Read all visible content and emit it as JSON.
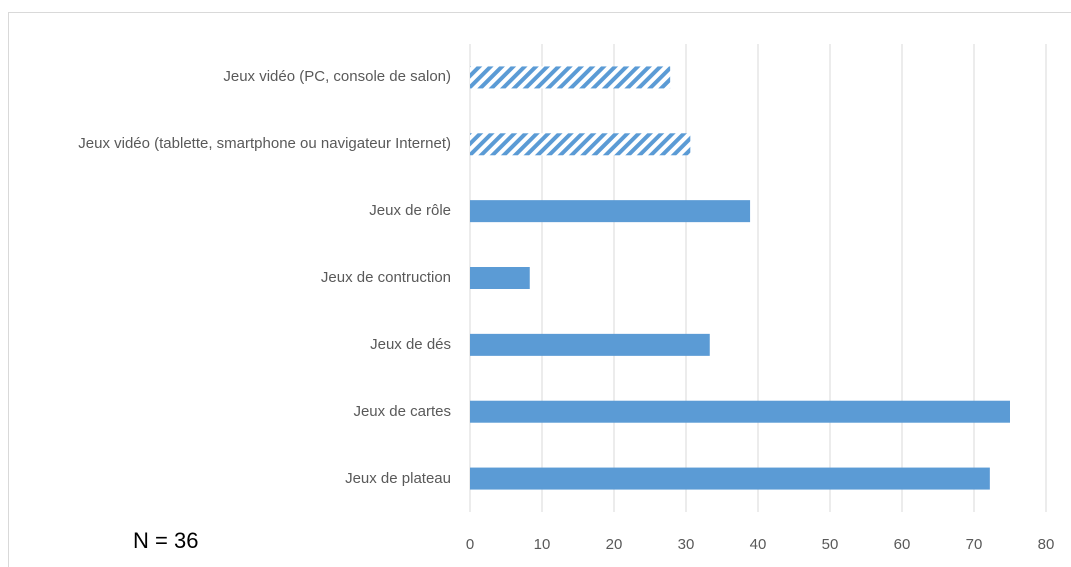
{
  "chart_data": {
    "type": "bar",
    "orientation": "horizontal",
    "categories": [
      "Jeux vidéo (PC, console de salon)",
      "Jeux vidéo (tablette, smartphone ou navigateur Internet)",
      "Jeux de rôle",
      "Jeux de contruction",
      "Jeux de dés",
      "Jeux de cartes",
      "Jeux de plateau"
    ],
    "values": [
      27.8,
      30.6,
      38.9,
      8.3,
      33.3,
      75,
      72.2
    ],
    "bar_styles": [
      "hatched",
      "hatched",
      "solid",
      "solid",
      "solid",
      "solid",
      "solid"
    ],
    "color": "#5b9bd5",
    "xlim": [
      0,
      80
    ],
    "xticks": [
      0,
      10,
      20,
      30,
      40,
      50,
      60,
      70,
      80
    ],
    "grid": true,
    "annotation": "N = 36"
  }
}
